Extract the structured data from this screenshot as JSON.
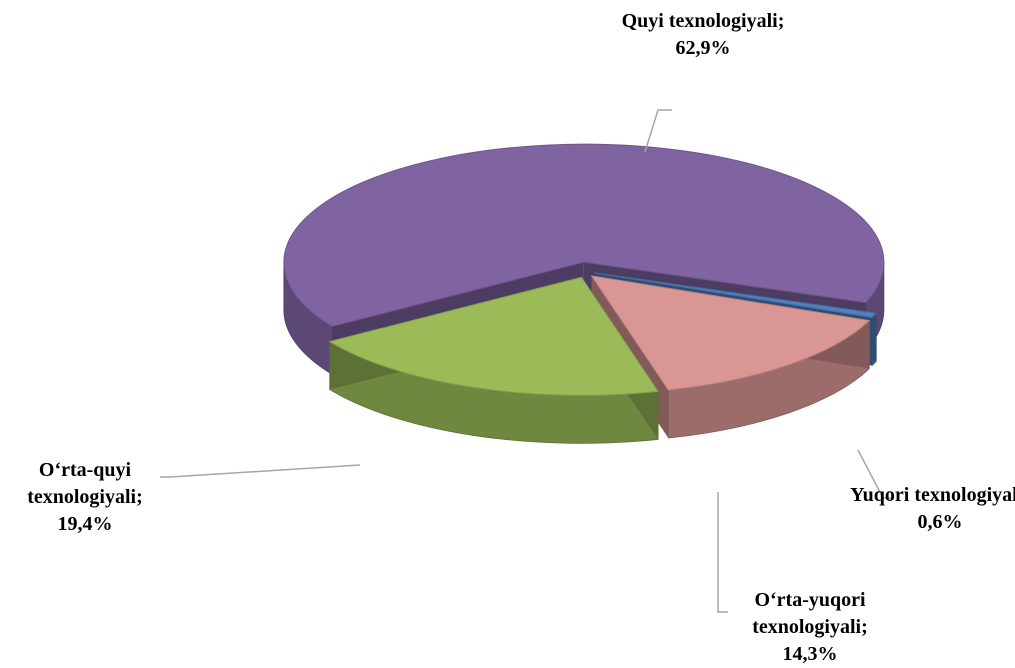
{
  "chart_data": {
    "type": "pie3d",
    "categories": [
      "Yuqori texnologiyali",
      "O‘rta-yuqori texnologiyali",
      "O‘rta-quyi texnologiyali",
      "Quyi texnologiyali"
    ],
    "values": [
      0.6,
      14.3,
      19.4,
      62.9
    ],
    "value_labels": [
      "0,6%",
      "14,3%",
      "19,4%",
      "62,9%"
    ],
    "separator": ";",
    "colors": [
      "#4f81bd",
      "#d99694",
      "#9bbb59",
      "#8064a2"
    ]
  }
}
